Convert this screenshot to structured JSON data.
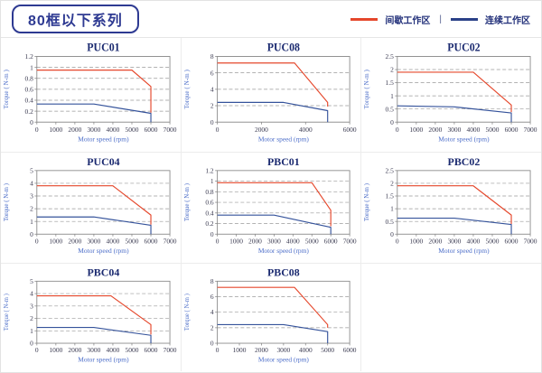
{
  "page": {
    "title": "80框以下系列"
  },
  "legend": {
    "items": [
      {
        "label": "间歇工作区",
        "color": "#e5472b"
      },
      {
        "label": "连续工作区",
        "color": "#2b4188"
      }
    ],
    "separator": "|"
  },
  "chart_style": {
    "title_color": "#1b2a70",
    "tick_color": "#3a3a50",
    "axis_label_color": "#4a6cc8",
    "grid_color": "#9a9a9a",
    "frame_color": "#8a8a8a"
  },
  "chart_data": [
    {
      "type": "line",
      "title": "PUC01",
      "xlabel": "Motor speed (rpm)",
      "ylabel": "Torque ( N-m )",
      "xlim": [
        0,
        7000
      ],
      "ylim": [
        0,
        1.2
      ],
      "xticks": [
        0,
        1000,
        2000,
        3000,
        4000,
        5000,
        6000,
        7000
      ],
      "yticks": [
        0,
        0.2,
        0.4,
        0.6,
        0.8,
        1,
        1.2
      ],
      "grid": "dashed-horizontal",
      "legend_position": "none",
      "series": [
        {
          "name": "间歇工作区",
          "color": "#e5472b",
          "points": [
            [
              0,
              0.95
            ],
            [
              5000,
              0.95
            ],
            [
              6000,
              0.65
            ],
            [
              6000,
              0.17
            ]
          ]
        },
        {
          "name": "连续工作区",
          "color": "#35539b",
          "points": [
            [
              0,
              0.33
            ],
            [
              3000,
              0.33
            ],
            [
              6000,
              0.16
            ],
            [
              6000,
              0
            ]
          ]
        }
      ]
    },
    {
      "type": "line",
      "title": "PUC08",
      "xlabel": "Motor speed (rpm)",
      "ylabel": "Torque ( N-m )",
      "xlim": [
        0,
        6000
      ],
      "ylim": [
        0,
        8
      ],
      "xticks": [
        0,
        2000,
        4000,
        6000
      ],
      "yticks": [
        0,
        2,
        4,
        6,
        8
      ],
      "grid": "dashed-horizontal",
      "legend_position": "none",
      "series": [
        {
          "name": "间歇工作区",
          "color": "#e5472b",
          "points": [
            [
              0,
              7.2
            ],
            [
              3500,
              7.2
            ],
            [
              5000,
              2.4
            ],
            [
              5000,
              1.9
            ]
          ]
        },
        {
          "name": "连续工作区",
          "color": "#35539b",
          "points": [
            [
              0,
              2.4
            ],
            [
              3000,
              2.4
            ],
            [
              5000,
              1.4
            ],
            [
              5000,
              0
            ]
          ]
        }
      ]
    },
    {
      "type": "line",
      "title": "PUC02",
      "xlabel": "Motor speed (rpm)",
      "ylabel": "Torque ( N-m )",
      "xlim": [
        0,
        7000
      ],
      "ylim": [
        0,
        2.5
      ],
      "xticks": [
        0,
        1000,
        2000,
        3000,
        4000,
        5000,
        6000,
        7000
      ],
      "yticks": [
        0,
        0.5,
        1,
        1.5,
        2,
        2.5
      ],
      "grid": "dashed-horizontal",
      "legend_position": "none",
      "series": [
        {
          "name": "间歇工作区",
          "color": "#e5472b",
          "points": [
            [
              0,
              1.9
            ],
            [
              4000,
              1.9
            ],
            [
              6000,
              0.65
            ],
            [
              6000,
              0.38
            ]
          ]
        },
        {
          "name": "连续工作区",
          "color": "#35539b",
          "points": [
            [
              0,
              0.62
            ],
            [
              3000,
              0.58
            ],
            [
              6000,
              0.35
            ],
            [
              6000,
              0
            ]
          ]
        }
      ]
    },
    {
      "type": "line",
      "title": "PUC04",
      "xlabel": "Motor speed (rpm)",
      "ylabel": "Torque ( N-m )",
      "xlim": [
        0,
        7000
      ],
      "ylim": [
        0,
        5
      ],
      "xticks": [
        0,
        1000,
        2000,
        3000,
        4000,
        5000,
        6000,
        7000
      ],
      "yticks": [
        0,
        1,
        2,
        3,
        4,
        5
      ],
      "grid": "dashed-horizontal",
      "legend_position": "none",
      "series": [
        {
          "name": "间歇工作区",
          "color": "#e5472b",
          "points": [
            [
              0,
              3.8
            ],
            [
              4000,
              3.8
            ],
            [
              6000,
              1.5
            ],
            [
              6000,
              0.75
            ]
          ]
        },
        {
          "name": "连续工作区",
          "color": "#35539b",
          "points": [
            [
              0,
              1.35
            ],
            [
              3000,
              1.35
            ],
            [
              6000,
              0.7
            ],
            [
              6000,
              0
            ]
          ]
        }
      ]
    },
    {
      "type": "line",
      "title": "PBC01",
      "xlabel": "Motor speed (rpm)",
      "ylabel": "Torque ( N-m )",
      "xlim": [
        0,
        7000
      ],
      "ylim": [
        0,
        1.2
      ],
      "xticks": [
        0,
        1000,
        2000,
        3000,
        4000,
        5000,
        6000,
        7000
      ],
      "yticks": [
        0,
        0.2,
        0.4,
        0.6,
        0.8,
        1,
        1.2
      ],
      "grid": "dashed-horizontal",
      "legend_position": "none",
      "series": [
        {
          "name": "间歇工作区",
          "color": "#e5472b",
          "points": [
            [
              0,
              0.97
            ],
            [
              5000,
              0.97
            ],
            [
              6000,
              0.45
            ],
            [
              6000,
              0.15
            ]
          ]
        },
        {
          "name": "连续工作区",
          "color": "#35539b",
          "points": [
            [
              0,
              0.36
            ],
            [
              3000,
              0.36
            ],
            [
              6000,
              0.13
            ],
            [
              6000,
              0
            ]
          ]
        }
      ]
    },
    {
      "type": "line",
      "title": "PBC02",
      "xlabel": "Motor speed (rpm)",
      "ylabel": "Torque ( N-m )",
      "xlim": [
        0,
        7000
      ],
      "ylim": [
        0,
        2.5
      ],
      "xticks": [
        0,
        1000,
        2000,
        3000,
        4000,
        5000,
        6000,
        7000
      ],
      "yticks": [
        0,
        0.5,
        1,
        1.5,
        2,
        2.5
      ],
      "grid": "dashed-horizontal",
      "legend_position": "none",
      "series": [
        {
          "name": "间歇工作区",
          "color": "#e5472b",
          "points": [
            [
              0,
              1.9
            ],
            [
              4000,
              1.9
            ],
            [
              6000,
              0.75
            ],
            [
              6000,
              0.4
            ]
          ]
        },
        {
          "name": "连续工作区",
          "color": "#35539b",
          "points": [
            [
              0,
              0.63
            ],
            [
              3000,
              0.63
            ],
            [
              6000,
              0.38
            ],
            [
              6000,
              0
            ]
          ]
        }
      ]
    },
    {
      "type": "line",
      "title": "PBC04",
      "xlabel": "Motor speed (rpm)",
      "ylabel": "Torque ( N-m )",
      "xlim": [
        0,
        7000
      ],
      "ylim": [
        0,
        5
      ],
      "xticks": [
        0,
        1000,
        2000,
        3000,
        4000,
        5000,
        6000,
        7000
      ],
      "yticks": [
        0,
        1,
        2,
        3,
        4,
        5
      ],
      "grid": "dashed-horizontal",
      "legend_position": "none",
      "series": [
        {
          "name": "间歇工作区",
          "color": "#e5472b",
          "points": [
            [
              0,
              3.82
            ],
            [
              3900,
              3.82
            ],
            [
              6000,
              1.5
            ],
            [
              6000,
              0.7
            ]
          ]
        },
        {
          "name": "连续工作区",
          "color": "#35539b",
          "points": [
            [
              0,
              1.27
            ],
            [
              3000,
              1.27
            ],
            [
              6000,
              0.64
            ],
            [
              6000,
              0
            ]
          ]
        }
      ]
    },
    {
      "type": "line",
      "title": "PBC08",
      "xlabel": "Motor speed (rpm)",
      "ylabel": "Torque ( N-m )",
      "xlim": [
        0,
        6000
      ],
      "ylim": [
        0,
        8
      ],
      "xticks": [
        0,
        1000,
        2000,
        3000,
        4000,
        5000,
        6000
      ],
      "yticks": [
        0,
        2,
        4,
        6,
        8
      ],
      "grid": "dashed-horizontal",
      "legend_position": "none",
      "series": [
        {
          "name": "间歇工作区",
          "color": "#e5472b",
          "points": [
            [
              0,
              7.2
            ],
            [
              3500,
              7.2
            ],
            [
              5000,
              2.4
            ],
            [
              5000,
              2
            ]
          ]
        },
        {
          "name": "连续工作区",
          "color": "#35539b",
          "points": [
            [
              0,
              2.4
            ],
            [
              3000,
              2.4
            ],
            [
              5000,
              1.5
            ],
            [
              5000,
              0
            ]
          ]
        }
      ]
    }
  ]
}
